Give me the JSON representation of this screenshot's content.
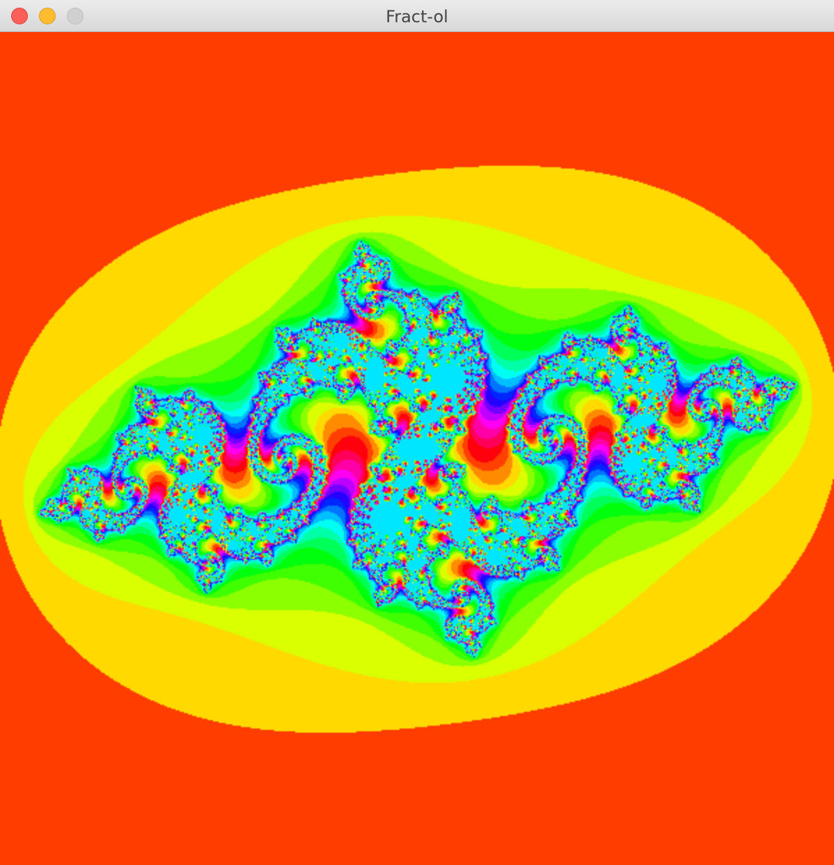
{
  "window": {
    "title": "Fract-ol"
  },
  "traffic_lights": {
    "close_color": "#fe5f57",
    "minimize_color": "#febc2e",
    "zoom_color": "#d0d0d0"
  },
  "fractal": {
    "type": "julia",
    "background_color": "#ff3d00"
  }
}
